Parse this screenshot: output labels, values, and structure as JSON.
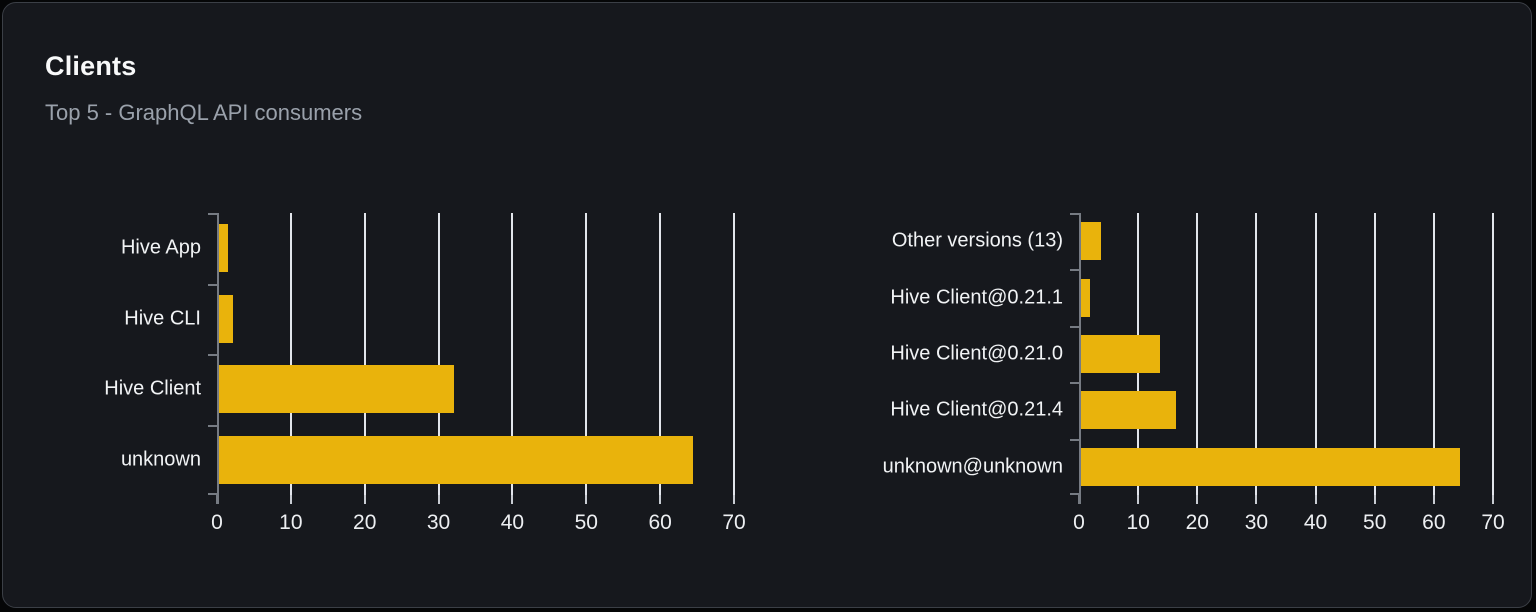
{
  "card": {
    "title": "Clients",
    "subtitle": "Top 5 - GraphQL API consumers"
  },
  "colors": {
    "bar": "#e9b30c",
    "card_background": "#16181d",
    "axis": "#767b83",
    "gridline": "#e2e5eb",
    "label_text": "#f1f3f5"
  },
  "chart_data": [
    {
      "type": "bar",
      "orientation": "horizontal",
      "title": "",
      "categories": [
        "Hive App",
        "Hive CLI",
        "Hive Client",
        "unknown"
      ],
      "values": [
        1.5,
        2.1,
        32.1,
        64.4
      ],
      "xlim": [
        0,
        70
      ],
      "xticks": [
        0,
        10,
        20,
        30,
        40,
        50,
        60,
        70
      ],
      "ylabel": "",
      "xlabel": "",
      "grid": "vertical gridlines on",
      "legend": "none",
      "bar_color": "#e9b30c"
    },
    {
      "type": "bar",
      "orientation": "horizontal",
      "title": "",
      "categories": [
        "Other versions (13)",
        "Hive Client@0.21.1",
        "Hive Client@0.21.0",
        "Hive Client@0.21.4",
        "unknown@unknown"
      ],
      "values": [
        3.7,
        1.8,
        13.7,
        16.4,
        64.4
      ],
      "xlim": [
        0,
        70
      ],
      "xticks": [
        0,
        10,
        20,
        30,
        40,
        50,
        60,
        70
      ],
      "ylabel": "",
      "xlabel": "",
      "grid": "vertical gridlines on",
      "legend": "none",
      "bar_color": "#e9b30c"
    }
  ]
}
